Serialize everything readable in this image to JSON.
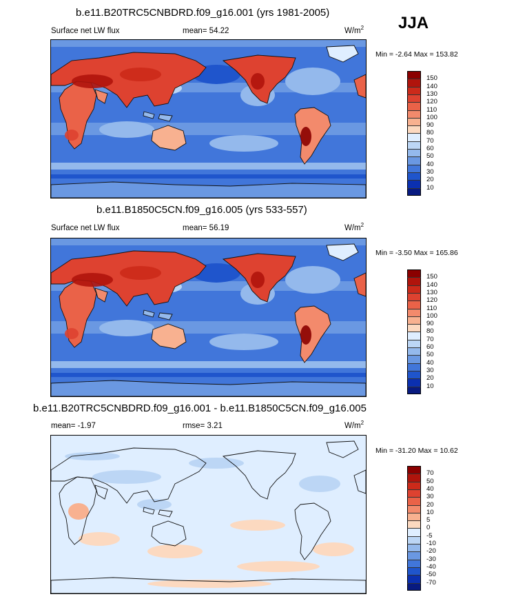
{
  "season": "JJA",
  "panels": [
    {
      "title": "b.e11.B20TRC5CNBDRD.f09_g16.001 (yrs 1981-2005)",
      "left_label": "Surface net LW flux",
      "center_label": "mean=  54.22",
      "units_base": "W/m",
      "units_exp": "2",
      "minmax": "Min =  -2.64 Max = 153.82",
      "colorbar": {
        "labels": [
          "150",
          "140",
          "130",
          "120",
          "110",
          "100",
          "90",
          "80",
          "70",
          "60",
          "50",
          "40",
          "30",
          "20",
          "10"
        ],
        "colors": [
          "#8b0000",
          "#b0140c",
          "#cc2a1a",
          "#de4230",
          "#ea6248",
          "#f38a6c",
          "#f8b190",
          "#fcd9c0",
          "#dfeeff",
          "#bcd6f5",
          "#94b9ec",
          "#6a98e2",
          "#4176da",
          "#1f55cc",
          "#0b30b0",
          "#081a80"
        ]
      }
    },
    {
      "title": "b.e11.B1850C5CN.f09_g16.005 (yrs 533-557)",
      "left_label": "Surface net LW flux",
      "center_label": "mean=  56.19",
      "units_base": "W/m",
      "units_exp": "2",
      "minmax": "Min =  -3.50 Max = 165.86",
      "colorbar": {
        "labels": [
          "150",
          "140",
          "130",
          "120",
          "110",
          "100",
          "90",
          "80",
          "70",
          "60",
          "50",
          "40",
          "30",
          "20",
          "10"
        ],
        "colors": [
          "#8b0000",
          "#b0140c",
          "#cc2a1a",
          "#de4230",
          "#ea6248",
          "#f38a6c",
          "#f8b190",
          "#fcd9c0",
          "#dfeeff",
          "#bcd6f5",
          "#94b9ec",
          "#6a98e2",
          "#4176da",
          "#1f55cc",
          "#0b30b0",
          "#081a80"
        ]
      }
    },
    {
      "title": "b.e11.B20TRC5CNBDRD.f09_g16.001 - b.e11.B1850C5CN.f09_g16.005",
      "left_label": "mean=  -1.97",
      "center_label": "rmse=   3.21",
      "units_base": "W/m",
      "units_exp": "2",
      "minmax": "Min = -31.20 Max =  10.62",
      "colorbar": {
        "labels": [
          "70",
          "50",
          "40",
          "30",
          "20",
          "10",
          "5",
          "0",
          "-5",
          "-10",
          "-20",
          "-30",
          "-40",
          "-50",
          "-70"
        ],
        "colors": [
          "#8b0000",
          "#b0140c",
          "#cc2a1a",
          "#de4230",
          "#ea6248",
          "#f38a6c",
          "#f8b190",
          "#fcd9c0",
          "#dfeeff",
          "#bcd6f5",
          "#94b9ec",
          "#6a98e2",
          "#4176da",
          "#1f55cc",
          "#0b30b0",
          "#081a80"
        ]
      }
    }
  ]
}
